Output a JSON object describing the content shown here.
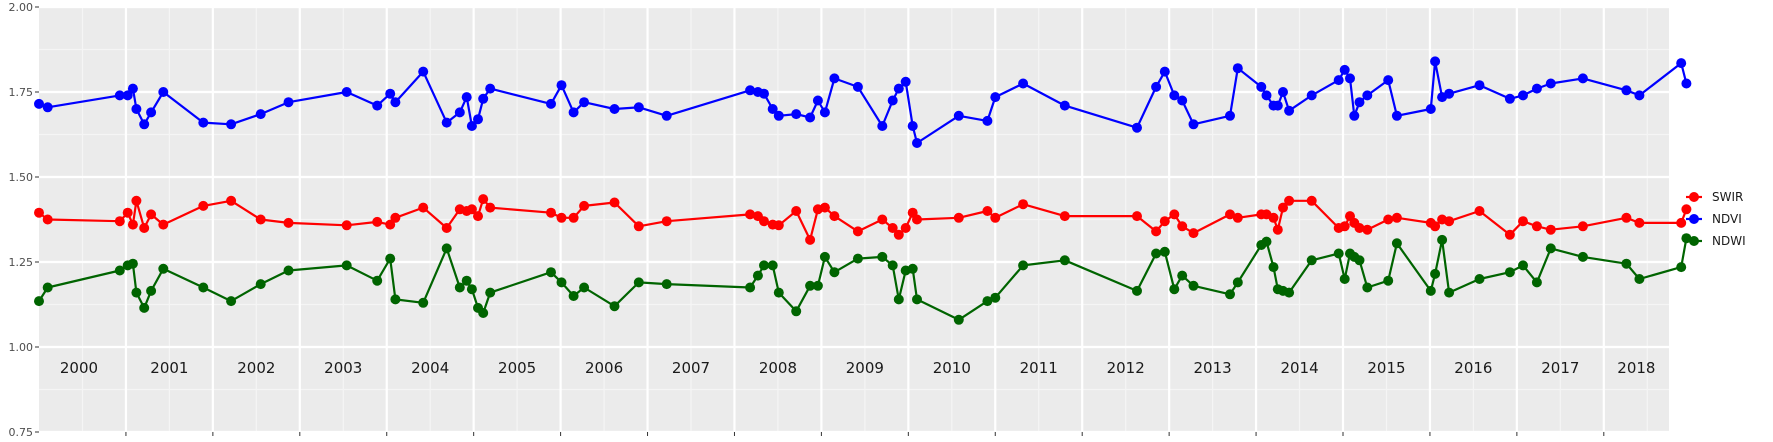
{
  "chart_data": {
    "type": "line",
    "title": "",
    "xlabel": "",
    "ylabel": "",
    "xlim": [
      2000.0,
      2018.75
    ],
    "ylim": [
      0.75,
      2.0
    ],
    "yticks": [
      0.75,
      1.0,
      1.25,
      1.5,
      1.75,
      2.0
    ],
    "ytick_labels": [
      "0.75",
      "1.00",
      "1.25",
      "1.50",
      "1.75",
      "2.00"
    ],
    "year_labels": [
      "2000",
      "2001",
      "2002",
      "2003",
      "2004",
      "2005",
      "2006",
      "2007",
      "2008",
      "2009",
      "2010",
      "2011",
      "2012",
      "2013",
      "2014",
      "2015",
      "2016",
      "2017",
      "2018"
    ],
    "grid": true,
    "legend_position": "right",
    "series": [
      {
        "name": "SWIR",
        "color": "#ff0000",
        "x": [
          2000.0,
          2000.1,
          2000.93,
          2001.02,
          2001.08,
          2001.12,
          2001.21,
          2001.29,
          2001.43,
          2001.89,
          2002.21,
          2002.55,
          2002.87,
          2003.54,
          2003.89,
          2004.04,
          2004.1,
          2004.42,
          2004.69,
          2004.84,
          2004.92,
          2004.98,
          2005.05,
          2005.11,
          2005.19,
          2005.89,
          2006.01,
          2006.15,
          2006.27,
          2006.62,
          2006.9,
          2007.22,
          2008.18,
          2008.27,
          2008.34,
          2008.44,
          2008.51,
          2008.71,
          2008.87,
          2008.96,
          2009.04,
          2009.15,
          2009.42,
          2009.7,
          2009.82,
          2009.89,
          2009.97,
          2010.05,
          2010.1,
          2010.58,
          2010.91,
          2011.0,
          2011.32,
          2011.8,
          2012.63,
          2012.85,
          2012.95,
          2013.06,
          2013.15,
          2013.28,
          2013.7,
          2013.79,
          2014.06,
          2014.12,
          2014.2,
          2014.25,
          2014.31,
          2014.38,
          2014.64,
          2014.95,
          2015.02,
          2015.08,
          2015.13,
          2015.19,
          2015.28,
          2015.52,
          2015.62,
          2016.01,
          2016.06,
          2016.14,
          2016.22,
          2016.57,
          2016.92,
          2017.07,
          2017.23,
          2017.39,
          2017.76,
          2018.26,
          2018.41,
          2018.89,
          2018.95
        ],
        "values": [
          1.395,
          1.375,
          1.37,
          1.395,
          1.36,
          1.43,
          1.35,
          1.39,
          1.36,
          1.415,
          1.43,
          1.375,
          1.365,
          1.358,
          1.368,
          1.36,
          1.38,
          1.41,
          1.35,
          1.405,
          1.4,
          1.405,
          1.385,
          1.435,
          1.41,
          1.395,
          1.38,
          1.38,
          1.415,
          1.425,
          1.355,
          1.37,
          1.39,
          1.385,
          1.37,
          1.36,
          1.358,
          1.4,
          1.315,
          1.405,
          1.41,
          1.385,
          1.34,
          1.375,
          1.35,
          1.33,
          1.35,
          1.395,
          1.375,
          1.38,
          1.4,
          1.38,
          1.42,
          1.385,
          1.385,
          1.34,
          1.37,
          1.39,
          1.355,
          1.335,
          1.39,
          1.38,
          1.39,
          1.39,
          1.38,
          1.345,
          1.41,
          1.43,
          1.43,
          1.35,
          1.355,
          1.385,
          1.365,
          1.35,
          1.345,
          1.375,
          1.38,
          1.365,
          1.355,
          1.375,
          1.37,
          1.4,
          1.33,
          1.37,
          1.355,
          1.345,
          1.355,
          1.38,
          1.365,
          1.365,
          1.405
        ],
        "values_sorted_note": ""
      },
      {
        "name": "NDVI",
        "color": "#0000ff",
        "x": [
          2000.0,
          2000.1,
          2000.93,
          2001.02,
          2001.08,
          2001.12,
          2001.21,
          2001.29,
          2001.43,
          2001.89,
          2002.21,
          2002.55,
          2002.87,
          2003.54,
          2003.89,
          2004.04,
          2004.1,
          2004.42,
          2004.69,
          2004.84,
          2004.92,
          2004.98,
          2005.05,
          2005.11,
          2005.19,
          2005.89,
          2006.01,
          2006.15,
          2006.27,
          2006.62,
          2006.9,
          2007.22,
          2008.18,
          2008.27,
          2008.34,
          2008.44,
          2008.51,
          2008.71,
          2008.87,
          2008.96,
          2009.04,
          2009.15,
          2009.42,
          2009.7,
          2009.82,
          2009.89,
          2009.97,
          2010.05,
          2010.1,
          2010.58,
          2010.91,
          2011.0,
          2011.32,
          2011.8,
          2012.63,
          2012.85,
          2012.95,
          2013.06,
          2013.15,
          2013.28,
          2013.7,
          2013.79,
          2014.06,
          2014.12,
          2014.2,
          2014.25,
          2014.31,
          2014.38,
          2014.64,
          2014.95,
          2015.02,
          2015.08,
          2015.13,
          2015.19,
          2015.28,
          2015.52,
          2015.62,
          2016.01,
          2016.06,
          2016.14,
          2016.22,
          2016.57,
          2016.92,
          2017.07,
          2017.23,
          2017.39,
          2017.76,
          2018.26,
          2018.41,
          2018.89,
          2018.95
        ],
        "values": [
          1.715,
          1.705,
          1.74,
          1.74,
          1.76,
          1.7,
          1.655,
          1.69,
          1.75,
          1.66,
          1.655,
          1.685,
          1.72,
          1.75,
          1.71,
          1.745,
          1.72,
          1.81,
          1.66,
          1.69,
          1.735,
          1.65,
          1.67,
          1.73,
          1.76,
          1.715,
          1.77,
          1.69,
          1.72,
          1.7,
          1.705,
          1.68,
          1.755,
          1.75,
          1.745,
          1.7,
          1.68,
          1.685,
          1.675,
          1.725,
          1.69,
          1.79,
          1.765,
          1.65,
          1.725,
          1.76,
          1.78,
          1.65,
          1.6,
          1.68,
          1.665,
          1.735,
          1.775,
          1.71,
          1.645,
          1.765,
          1.81,
          1.74,
          1.725,
          1.655,
          1.68,
          1.82,
          1.765,
          1.74,
          1.71,
          1.71,
          1.75,
          1.695,
          1.74,
          1.785,
          1.815,
          1.79,
          1.68,
          1.72,
          1.74,
          1.785,
          1.68,
          1.7,
          1.84,
          1.735,
          1.745,
          1.77,
          1.73,
          1.74,
          1.76,
          1.775,
          1.79,
          1.755,
          1.74,
          1.835,
          1.775
        ],
        "values_sorted_note": ""
      },
      {
        "name": "NDWI",
        "color": "#006400",
        "x": [
          2000.0,
          2000.1,
          2000.93,
          2001.02,
          2001.08,
          2001.12,
          2001.21,
          2001.29,
          2001.43,
          2001.89,
          2002.21,
          2002.55,
          2002.87,
          2003.54,
          2003.89,
          2004.04,
          2004.1,
          2004.42,
          2004.69,
          2004.84,
          2004.92,
          2004.98,
          2005.05,
          2005.11,
          2005.19,
          2005.89,
          2006.01,
          2006.15,
          2006.27,
          2006.62,
          2006.9,
          2007.22,
          2008.18,
          2008.27,
          2008.34,
          2008.44,
          2008.51,
          2008.71,
          2008.87,
          2008.96,
          2009.04,
          2009.15,
          2009.42,
          2009.7,
          2009.82,
          2009.89,
          2009.97,
          2010.05,
          2010.1,
          2010.58,
          2010.91,
          2011.0,
          2011.32,
          2011.8,
          2012.63,
          2012.85,
          2012.95,
          2013.06,
          2013.15,
          2013.28,
          2013.7,
          2013.79,
          2014.06,
          2014.12,
          2014.2,
          2014.25,
          2014.31,
          2014.38,
          2014.64,
          2014.95,
          2015.02,
          2015.08,
          2015.13,
          2015.19,
          2015.28,
          2015.52,
          2015.62,
          2016.01,
          2016.06,
          2016.14,
          2016.22,
          2016.57,
          2016.92,
          2017.07,
          2017.23,
          2017.39,
          2017.76,
          2018.26,
          2018.41,
          2018.89,
          2018.95
        ],
        "values": [
          1.135,
          1.175,
          1.225,
          1.24,
          1.245,
          1.16,
          1.115,
          1.165,
          1.23,
          1.175,
          1.135,
          1.185,
          1.225,
          1.24,
          1.195,
          1.26,
          1.14,
          1.13,
          1.29,
          1.175,
          1.195,
          1.17,
          1.115,
          1.1,
          1.16,
          1.22,
          1.19,
          1.15,
          1.175,
          1.12,
          1.19,
          1.185,
          1.175,
          1.21,
          1.24,
          1.24,
          1.16,
          1.105,
          1.18,
          1.18,
          1.265,
          1.22,
          1.26,
          1.265,
          1.24,
          1.14,
          1.225,
          1.23,
          1.14,
          1.08,
          1.135,
          1.145,
          1.24,
          1.255,
          1.165,
          1.275,
          1.28,
          1.17,
          1.21,
          1.18,
          1.155,
          1.19,
          1.3,
          1.31,
          1.235,
          1.17,
          1.165,
          1.16,
          1.255,
          1.275,
          1.2,
          1.275,
          1.265,
          1.255,
          1.175,
          1.195,
          1.305,
          1.165,
          1.215,
          1.315,
          1.16,
          1.2,
          1.22,
          1.24,
          1.19,
          1.29,
          1.265,
          1.245,
          1.2,
          1.235,
          1.32
        ],
        "values_sorted_note": ""
      }
    ]
  }
}
